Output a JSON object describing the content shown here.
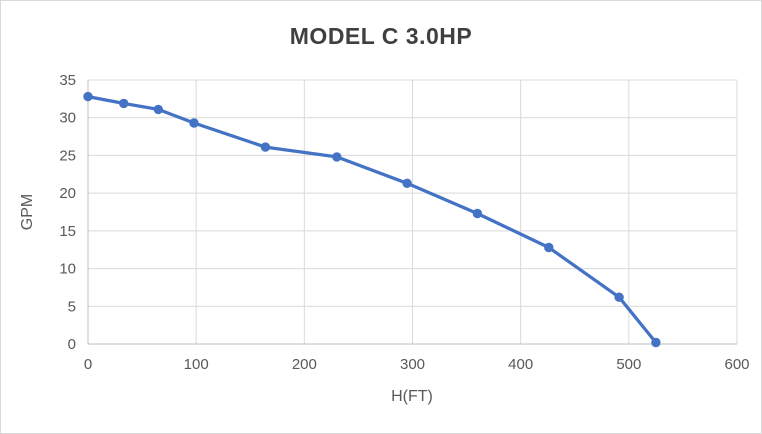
{
  "chart_data": {
    "type": "line",
    "title": "MODEL C 3.0HP",
    "xlabel": "H(FT)",
    "ylabel": "GPM",
    "xlim": [
      0,
      600
    ],
    "ylim": [
      0,
      35
    ],
    "xticks": [
      0,
      100,
      200,
      300,
      400,
      500,
      600
    ],
    "yticks": [
      0,
      5,
      10,
      15,
      20,
      25,
      30,
      35
    ],
    "grid": true,
    "legend": false,
    "series": [
      {
        "name": "MODEL C 3.0HP",
        "color": "#4472C4",
        "marker": "circle",
        "points": [
          [
            0,
            32.8
          ],
          [
            33,
            31.9
          ],
          [
            65,
            31.1
          ],
          [
            98,
            29.3
          ],
          [
            164,
            26.1
          ],
          [
            230,
            24.8
          ],
          [
            295,
            21.3
          ],
          [
            360,
            17.3
          ],
          [
            426,
            12.8
          ],
          [
            491,
            6.2
          ],
          [
            525,
            0.2
          ]
        ]
      }
    ],
    "colors": {
      "gridline": "#D9D9D9",
      "axis_line": "#BFBFBF",
      "tick_label": "#595959",
      "axis_title": "#595959",
      "title": "#404040",
      "background": "#FFFFFF",
      "border": "#D9D9D9"
    }
  }
}
